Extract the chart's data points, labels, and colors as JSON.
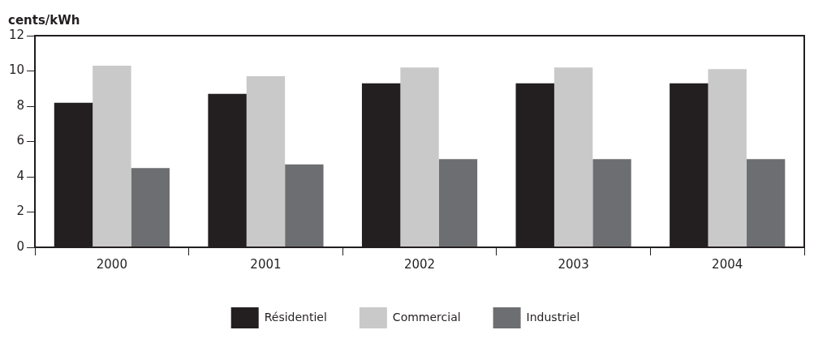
{
  "chart_data": {
    "type": "bar",
    "ylabel": "cents/kWh",
    "categories": [
      "2000",
      "2001",
      "2002",
      "2003",
      "2004"
    ],
    "series": [
      {
        "name": "Résidentiel",
        "color": "#231f20",
        "values": [
          8.2,
          8.7,
          9.3,
          9.3,
          9.3
        ]
      },
      {
        "name": "Commercial",
        "color": "#c9c9c9",
        "values": [
          10.3,
          9.7,
          10.2,
          10.2,
          10.1
        ]
      },
      {
        "name": "Industriel",
        "color": "#6d6e71",
        "values": [
          4.5,
          4.7,
          5.0,
          5.0,
          5.0
        ]
      }
    ],
    "ylim": [
      0,
      12
    ],
    "yticks": [
      0,
      2,
      4,
      6,
      8,
      10,
      12
    ],
    "grid": false,
    "legend": "bottom"
  }
}
